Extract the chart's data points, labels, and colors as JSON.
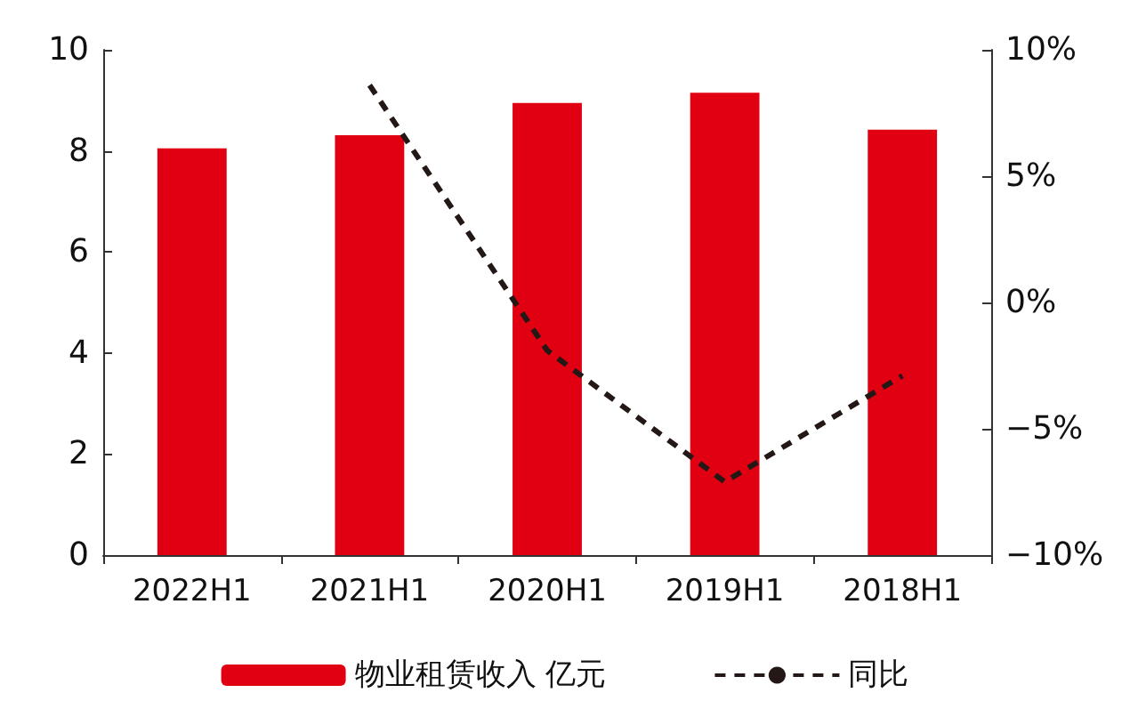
{
  "chart_data": {
    "type": "bar",
    "categories": [
      "2022H1",
      "2021H1",
      "2020H1",
      "2019H1",
      "2018H1"
    ],
    "series": [
      {
        "name": "物业租赁收入 亿元",
        "color": "#e00012",
        "values": [
          8.05,
          8.31,
          8.95,
          9.15,
          8.42
        ]
      },
      {
        "name": "同比",
        "type": "line",
        "axis": "y2",
        "color": "#231815",
        "line_style": "dashed",
        "marker": "none",
        "values": [
          null,
          8.6,
          -1.9,
          -7.1,
          -2.9
        ]
      }
    ],
    "ylim": [
      0,
      10
    ],
    "yticks": [
      0,
      2,
      4,
      6,
      8,
      10
    ],
    "y2lim": [
      -10,
      10
    ],
    "y2ticks": [
      {
        "value": -10,
        "label": "−10%"
      },
      {
        "value": -5,
        "label": "−5%"
      },
      {
        "value": 0,
        "label": "0%"
      },
      {
        "value": 5,
        "label": "5%"
      },
      {
        "value": 10,
        "label": "10%"
      }
    ],
    "legend": "bottom",
    "grid": false
  }
}
